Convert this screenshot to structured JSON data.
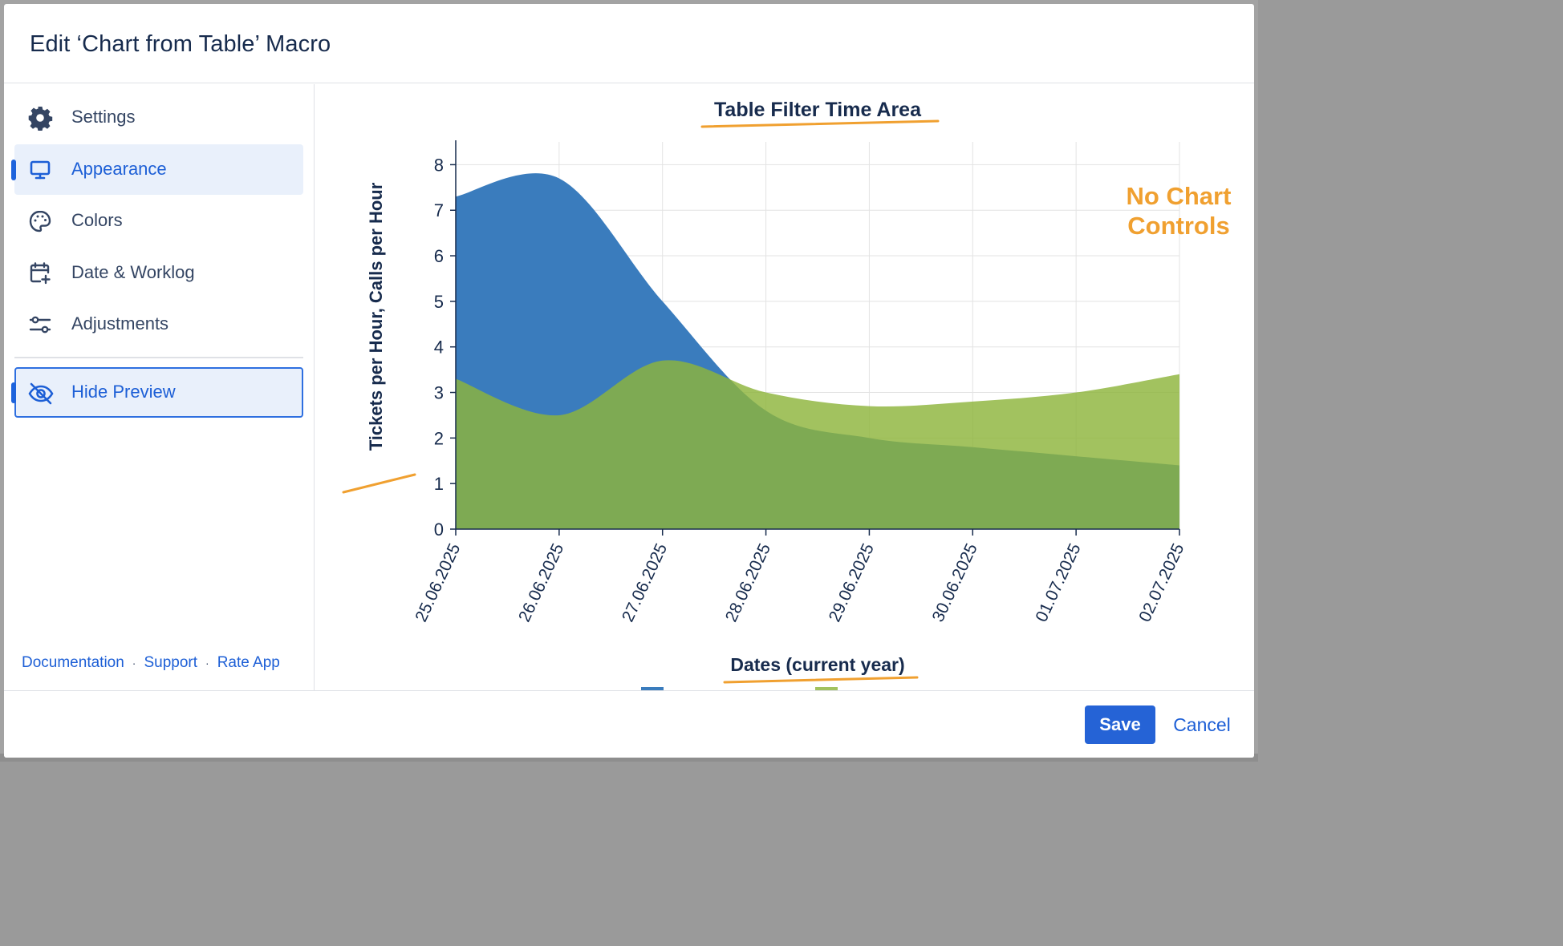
{
  "dialog": {
    "title": "Edit ‘Chart from Table’ Macro"
  },
  "sidebar": {
    "items": [
      {
        "label": "Settings",
        "icon": "gear-icon"
      },
      {
        "label": "Appearance",
        "icon": "monitor-icon",
        "active": true
      },
      {
        "label": "Colors",
        "icon": "palette-icon"
      },
      {
        "label": "Date & Worklog",
        "icon": "calendar-plus-icon"
      },
      {
        "label": "Adjustments",
        "icon": "sliders-icon"
      }
    ],
    "hide_preview": {
      "label": "Hide Preview",
      "icon": "eye-off-icon"
    },
    "footer_links": [
      "Documentation",
      "Support",
      "Rate App"
    ],
    "footer_separator": "·"
  },
  "annotation": {
    "text_line1": "No Chart",
    "text_line2": "Controls",
    "color": "#f0a030"
  },
  "footer": {
    "save_label": "Save",
    "cancel_label": "Cancel"
  },
  "colors": {
    "accent": "#2563d6",
    "series_blue": "#3a7cbd",
    "series_green": "#8db53c"
  },
  "chart_data": {
    "type": "area",
    "title": "Table Filter Time Area",
    "xlabel": "Dates (current year)",
    "ylabel": "Tickets per Hour, Calls per Hour",
    "categories": [
      "25.06.2025",
      "26.06.2025",
      "27.06.2025",
      "28.06.2025",
      "29.06.2025",
      "30.06.2025",
      "01.07.2025",
      "02.07.2025"
    ],
    "ylim": [
      0,
      8.5
    ],
    "yticks": [
      0,
      1,
      2,
      3,
      4,
      5,
      6,
      7,
      8
    ],
    "grid": true,
    "legend_position": "bottom",
    "series": [
      {
        "name": "Tickets per Hour",
        "color": "#3a7cbd",
        "values": [
          7.3,
          7.7,
          5.0,
          2.6,
          2.0,
          1.8,
          1.6,
          1.4
        ]
      },
      {
        "name": "Calls per Hour",
        "color": "#8db53c",
        "values": [
          3.3,
          2.5,
          3.7,
          3.0,
          2.7,
          2.8,
          3.0,
          3.4
        ]
      }
    ]
  }
}
